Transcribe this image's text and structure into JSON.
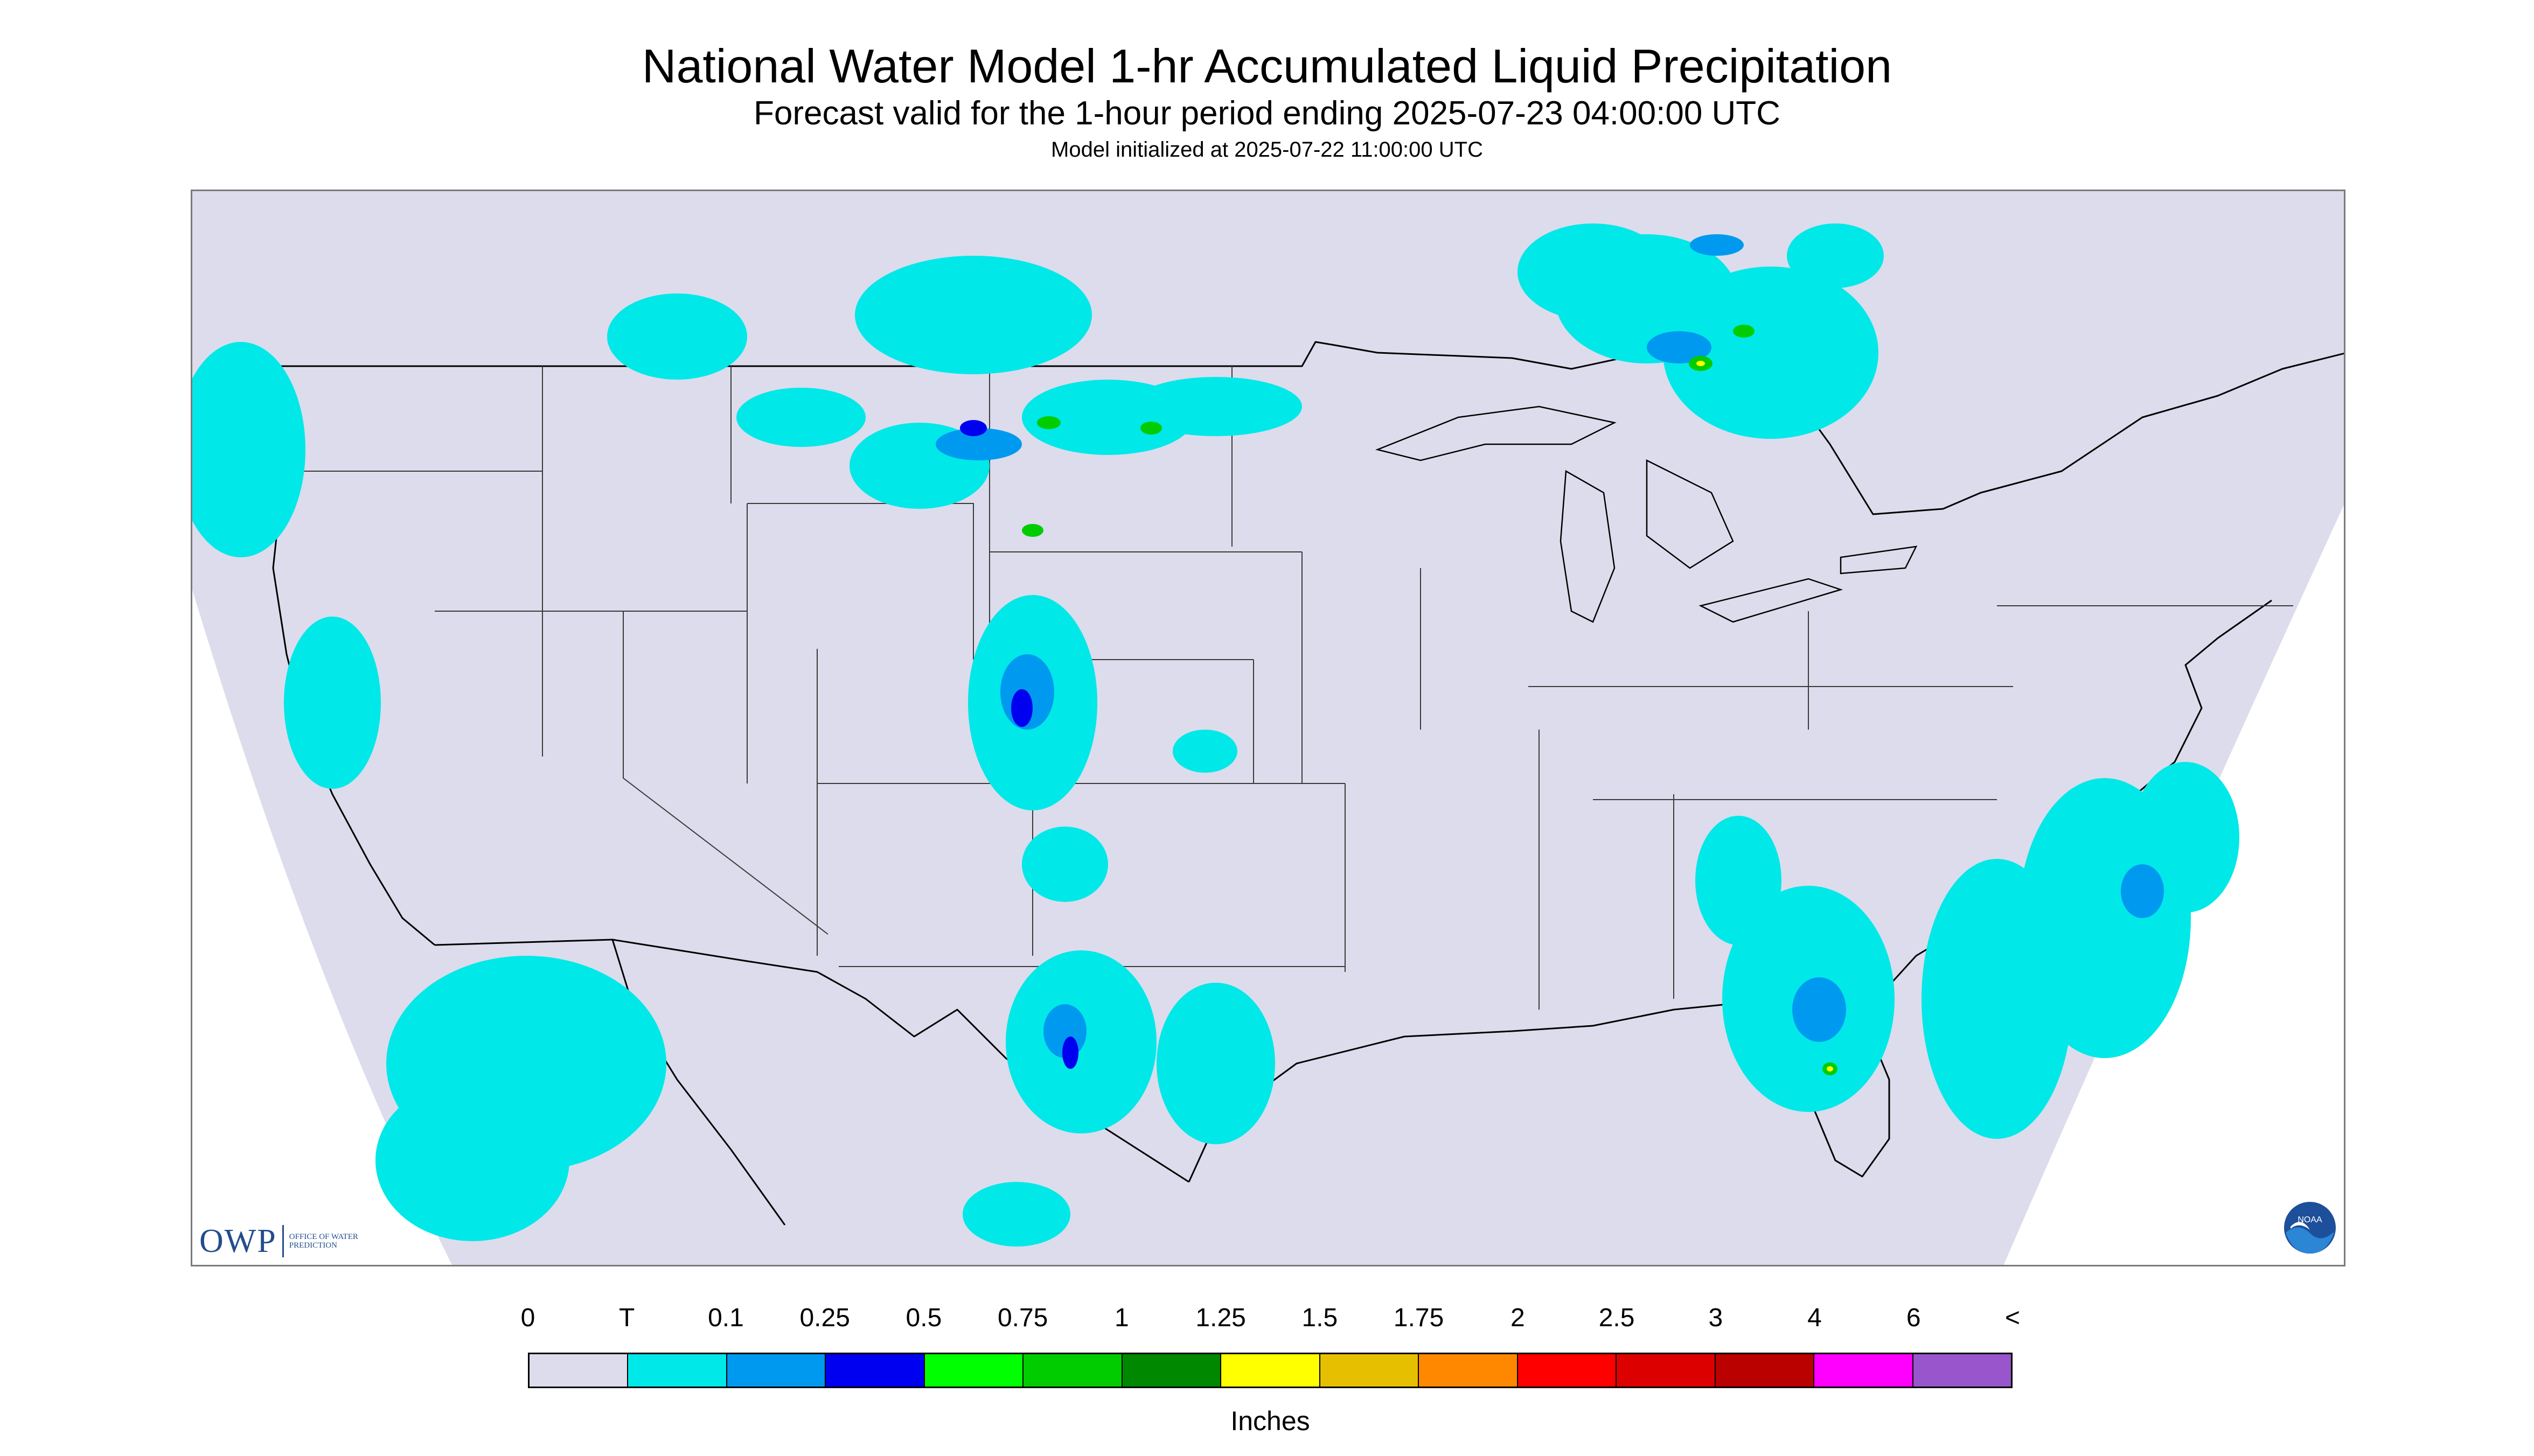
{
  "title": "National Water Model 1-hr Accumulated Liquid Precipitation",
  "subtitle": "Forecast valid for the 1-hour period ending 2025-07-23 04:00:00 UTC",
  "init_line": "Model initialized at 2025-07-22 11:00:00 UTC",
  "logos": {
    "owp_text": "OWP",
    "owp_subtext": "OFFICE OF WATER PREDICTION",
    "noaa_text": "NOAA"
  },
  "colors": {
    "no_data_background": "#dcdcec",
    "map_outline": "#000000"
  },
  "legend": {
    "tick_labels": [
      "0",
      "T",
      "0.1",
      "0.25",
      "0.5",
      "0.75",
      "1",
      "1.25",
      "1.5",
      "1.75",
      "2",
      "2.5",
      "3",
      "4",
      "6",
      "<"
    ],
    "colors": [
      "#dcdcec",
      "#00e8e8",
      "#0099f0",
      "#0000f0",
      "#00ff00",
      "#00cc00",
      "#008800",
      "#ffff00",
      "#e6c000",
      "#ff8800",
      "#ff0000",
      "#dd0000",
      "#bb0000",
      "#ff00ff",
      "#9955cc"
    ],
    "units": "Inches"
  }
}
